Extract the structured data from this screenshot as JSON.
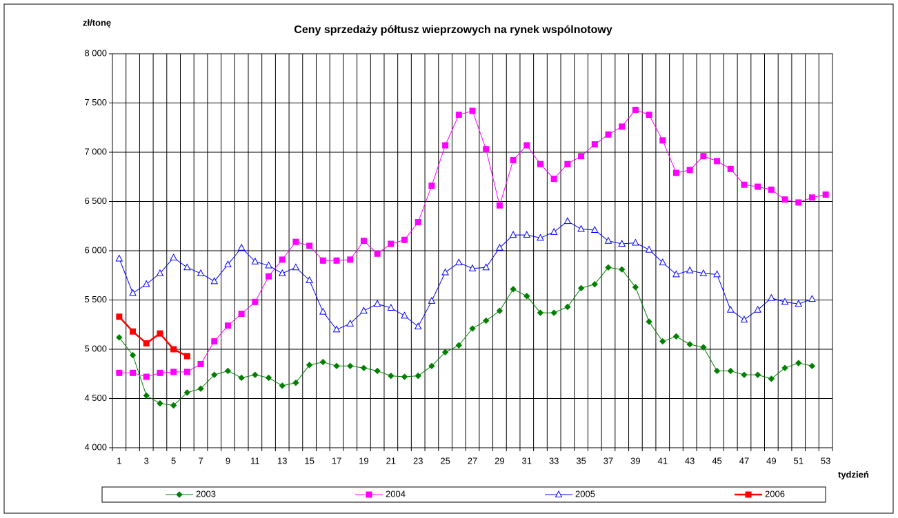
{
  "chart_data": {
    "type": "line",
    "title": "Ceny sprzedaży półtusz wieprzowych na rynek wspólnotowy",
    "y_label": "zł/tonę",
    "x_label": "tydzień",
    "categories": [
      1,
      null,
      3,
      null,
      5,
      null,
      7,
      null,
      9,
      null,
      11,
      null,
      13,
      null,
      15,
      null,
      17,
      null,
      19,
      null,
      21,
      null,
      23,
      null,
      25,
      null,
      27,
      null,
      29,
      null,
      31,
      null,
      33,
      null,
      35,
      null,
      37,
      null,
      39,
      null,
      41,
      null,
      43,
      null,
      45,
      null,
      47,
      null,
      49,
      null,
      51,
      null,
      53
    ],
    "ylim": [
      4000,
      8000
    ],
    "yticks": [
      {
        "value": 4000,
        "label": "4 000"
      },
      {
        "value": 4500,
        "label": "4 500"
      },
      {
        "value": 5000,
        "label": "5 000"
      },
      {
        "value": 5500,
        "label": "5 500"
      },
      {
        "value": 6000,
        "label": "6 000"
      },
      {
        "value": 6500,
        "label": "6 500"
      },
      {
        "value": 7000,
        "label": "7 000"
      },
      {
        "value": 7500,
        "label": "7 500"
      },
      {
        "value": 8000,
        "label": "8 000"
      }
    ],
    "grid": true,
    "legend": "bottom",
    "series": [
      {
        "name": "2003",
        "color": "#008000",
        "marker": "diamond",
        "line_width": 1,
        "values": [
          5120,
          4940,
          4530,
          4450,
          4430,
          4560,
          4600,
          4740,
          4780,
          4710,
          4740,
          4710,
          4630,
          4660,
          4840,
          4870,
          4830,
          4830,
          4810,
          4780,
          4730,
          4720,
          4730,
          4830,
          4970,
          5040,
          5210,
          5290,
          5390,
          5610,
          5540,
          5370,
          5370,
          5430,
          5620,
          5660,
          5830,
          5810,
          5630,
          5280,
          5080,
          5130,
          5050,
          5020,
          4780,
          4780,
          4740,
          4740,
          4700,
          4810,
          4860,
          4830,
          null
        ]
      },
      {
        "name": "2004",
        "color": "#ff00ff",
        "marker": "square",
        "line_width": 1,
        "values": [
          4760,
          4760,
          4720,
          4760,
          4770,
          4770,
          4850,
          5080,
          5240,
          5360,
          5480,
          5740,
          5910,
          6090,
          6050,
          5900,
          5900,
          5910,
          6100,
          5970,
          6070,
          6110,
          6290,
          6660,
          7070,
          7380,
          7420,
          7030,
          6460,
          6920,
          7070,
          6880,
          6730,
          6880,
          6960,
          7080,
          7180,
          7260,
          7430,
          7380,
          7120,
          6790,
          6820,
          6960,
          6910,
          6830,
          6670,
          6650,
          6620,
          6520,
          6490,
          6540,
          6570
        ]
      },
      {
        "name": "2005",
        "color": "#0000ff",
        "marker": "triangle",
        "line_width": 1,
        "values": [
          5920,
          5570,
          5660,
          5770,
          5930,
          5830,
          5770,
          5690,
          5860,
          6030,
          5890,
          5850,
          5770,
          5830,
          5700,
          5380,
          5200,
          5260,
          5390,
          5460,
          5420,
          5340,
          5230,
          5490,
          5780,
          5880,
          5820,
          5830,
          6030,
          6160,
          6160,
          6130,
          6190,
          6300,
          6220,
          6210,
          6100,
          6070,
          6080,
          6010,
          5880,
          5760,
          5800,
          5770,
          5760,
          5400,
          5300,
          5400,
          5520,
          5480,
          5460,
          5510,
          null
        ]
      },
      {
        "name": "2006",
        "color": "#ff0000",
        "marker": "square",
        "line_width": 2.5,
        "values": [
          5330,
          5180,
          5060,
          5160,
          5000,
          4930,
          null,
          null,
          null,
          null,
          null,
          null,
          null,
          null,
          null,
          null,
          null,
          null,
          null,
          null,
          null,
          null,
          null,
          null,
          null,
          null,
          null,
          null,
          null,
          null,
          null,
          null,
          null,
          null,
          null,
          null,
          null,
          null,
          null,
          null,
          null,
          null,
          null,
          null,
          null,
          null,
          null,
          null,
          null,
          null,
          null,
          null,
          null
        ]
      }
    ]
  }
}
